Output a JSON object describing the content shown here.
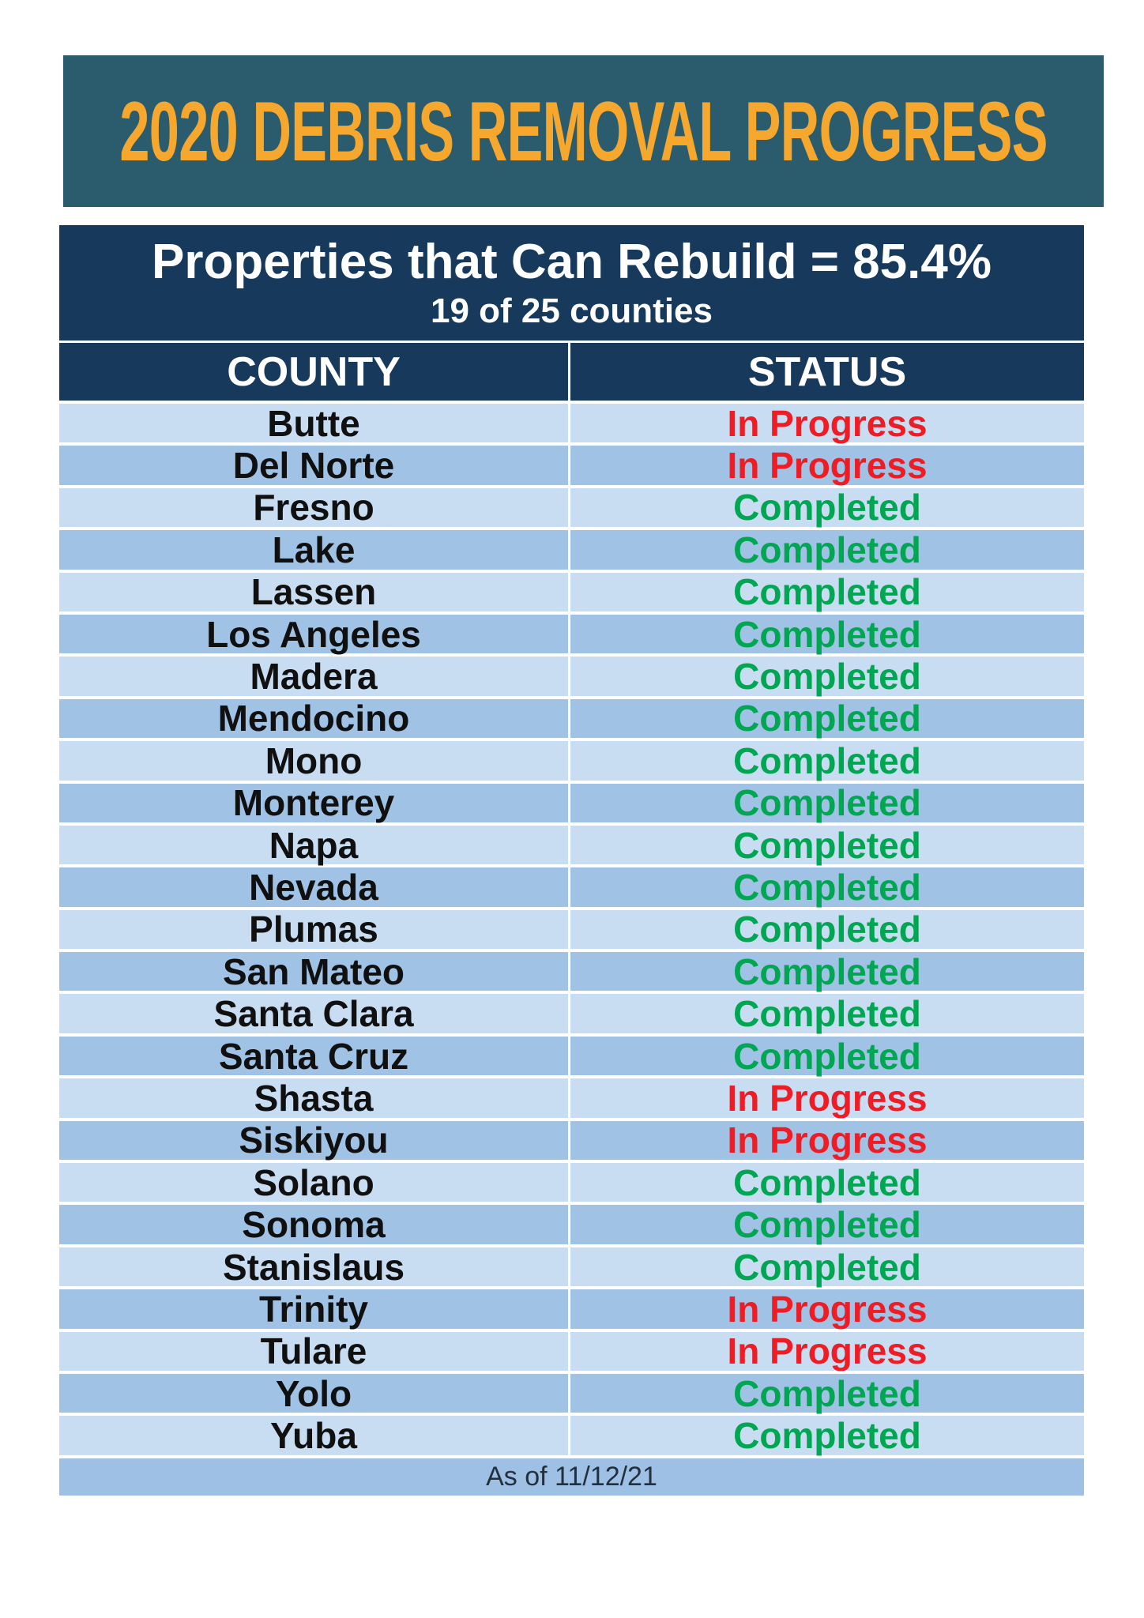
{
  "chart_data": {
    "type": "table",
    "title": "2020 DEBRIS REMOVAL PROGRESS",
    "header": {
      "line1": "Properties that Can Rebuild = 85.4%",
      "line2": "19 of 25 counties"
    },
    "columns": [
      "COUNTY",
      "STATUS"
    ],
    "rows": [
      {
        "county": "Butte",
        "status": "In Progress"
      },
      {
        "county": "Del Norte",
        "status": "In Progress"
      },
      {
        "county": "Fresno",
        "status": "Completed"
      },
      {
        "county": "Lake",
        "status": "Completed"
      },
      {
        "county": "Lassen",
        "status": "Completed"
      },
      {
        "county": "Los Angeles",
        "status": "Completed"
      },
      {
        "county": "Madera",
        "status": "Completed"
      },
      {
        "county": "Mendocino",
        "status": "Completed"
      },
      {
        "county": "Mono",
        "status": "Completed"
      },
      {
        "county": "Monterey",
        "status": "Completed"
      },
      {
        "county": "Napa",
        "status": "Completed"
      },
      {
        "county": "Nevada",
        "status": "Completed"
      },
      {
        "county": "Plumas",
        "status": "Completed"
      },
      {
        "county": "San Mateo",
        "status": "Completed"
      },
      {
        "county": "Santa Clara",
        "status": "Completed"
      },
      {
        "county": "Santa Cruz",
        "status": "Completed"
      },
      {
        "county": "Shasta",
        "status": "In Progress"
      },
      {
        "county": "Siskiyou",
        "status": "In Progress"
      },
      {
        "county": "Solano",
        "status": "Completed"
      },
      {
        "county": "Sonoma",
        "status": "Completed"
      },
      {
        "county": "Stanislaus",
        "status": "Completed"
      },
      {
        "county": "Trinity",
        "status": "In Progress"
      },
      {
        "county": "Tulare",
        "status": "In Progress"
      },
      {
        "county": "Yolo",
        "status": "Completed"
      },
      {
        "county": "Yuba",
        "status": "Completed"
      }
    ],
    "footer": "As of 11/12/21",
    "summary_values": {
      "percent_can_rebuild": 85.4,
      "counties_completed": 19,
      "counties_total": 25
    },
    "layout_hints": {
      "striped_rows": true,
      "status_color_map": {
        "In Progress": "#ee1c25",
        "Completed": "#00a651"
      }
    }
  },
  "colors": {
    "banner_bg": "#2a5c6e",
    "banner_text": "#f5a72e",
    "header_bg": "#16395c",
    "header_text": "#ffffff",
    "row_light": "#c8ddf1",
    "row_dark": "#a0c2e5",
    "footer_bg": "#9dc0e4",
    "footer_text": "#23303c",
    "county_text": "#101010",
    "in_progress": "#ee1c25",
    "completed": "#00a651"
  }
}
